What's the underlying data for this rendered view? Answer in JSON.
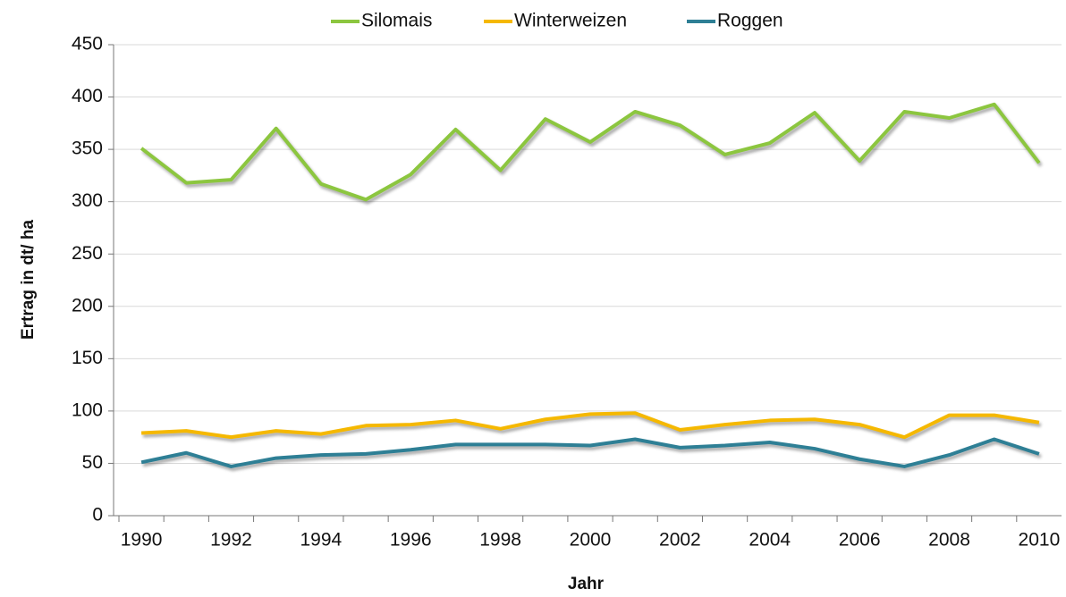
{
  "chart_data": {
    "type": "line",
    "categories": [
      "1990",
      null,
      "1992",
      null,
      "1994",
      null,
      "1996",
      null,
      "1998",
      null,
      "2000",
      null,
      "2002",
      null,
      "2004",
      null,
      "2006",
      null,
      "2008",
      null,
      "2010"
    ],
    "series": [
      {
        "name": "Silomais",
        "color": "#8cc63f",
        "values": [
          351,
          318,
          321,
          370,
          317,
          302,
          326,
          369,
          330,
          379,
          357,
          386,
          373,
          345,
          356,
          385,
          339,
          386,
          380,
          393,
          337
        ]
      },
      {
        "name": "Winterweizen",
        "color": "#f5b800",
        "values": [
          79,
          81,
          75,
          81,
          78,
          86,
          87,
          91,
          83,
          92,
          97,
          98,
          82,
          87,
          91,
          92,
          87,
          75,
          96,
          96,
          89
        ]
      },
      {
        "name": "Roggen",
        "color": "#2e7f95",
        "values": [
          51,
          60,
          47,
          55,
          58,
          59,
          63,
          68,
          68,
          68,
          67,
          73,
          65,
          67,
          70,
          64,
          54,
          47,
          58,
          73,
          59
        ]
      }
    ],
    "x_label": "Jahr",
    "y_label": "Ertrag in dt/ ha",
    "ylim": [
      0,
      450
    ],
    "yticks": [
      0,
      50,
      100,
      150,
      200,
      250,
      300,
      350,
      400,
      450
    ],
    "grid": true,
    "legend": "top"
  }
}
